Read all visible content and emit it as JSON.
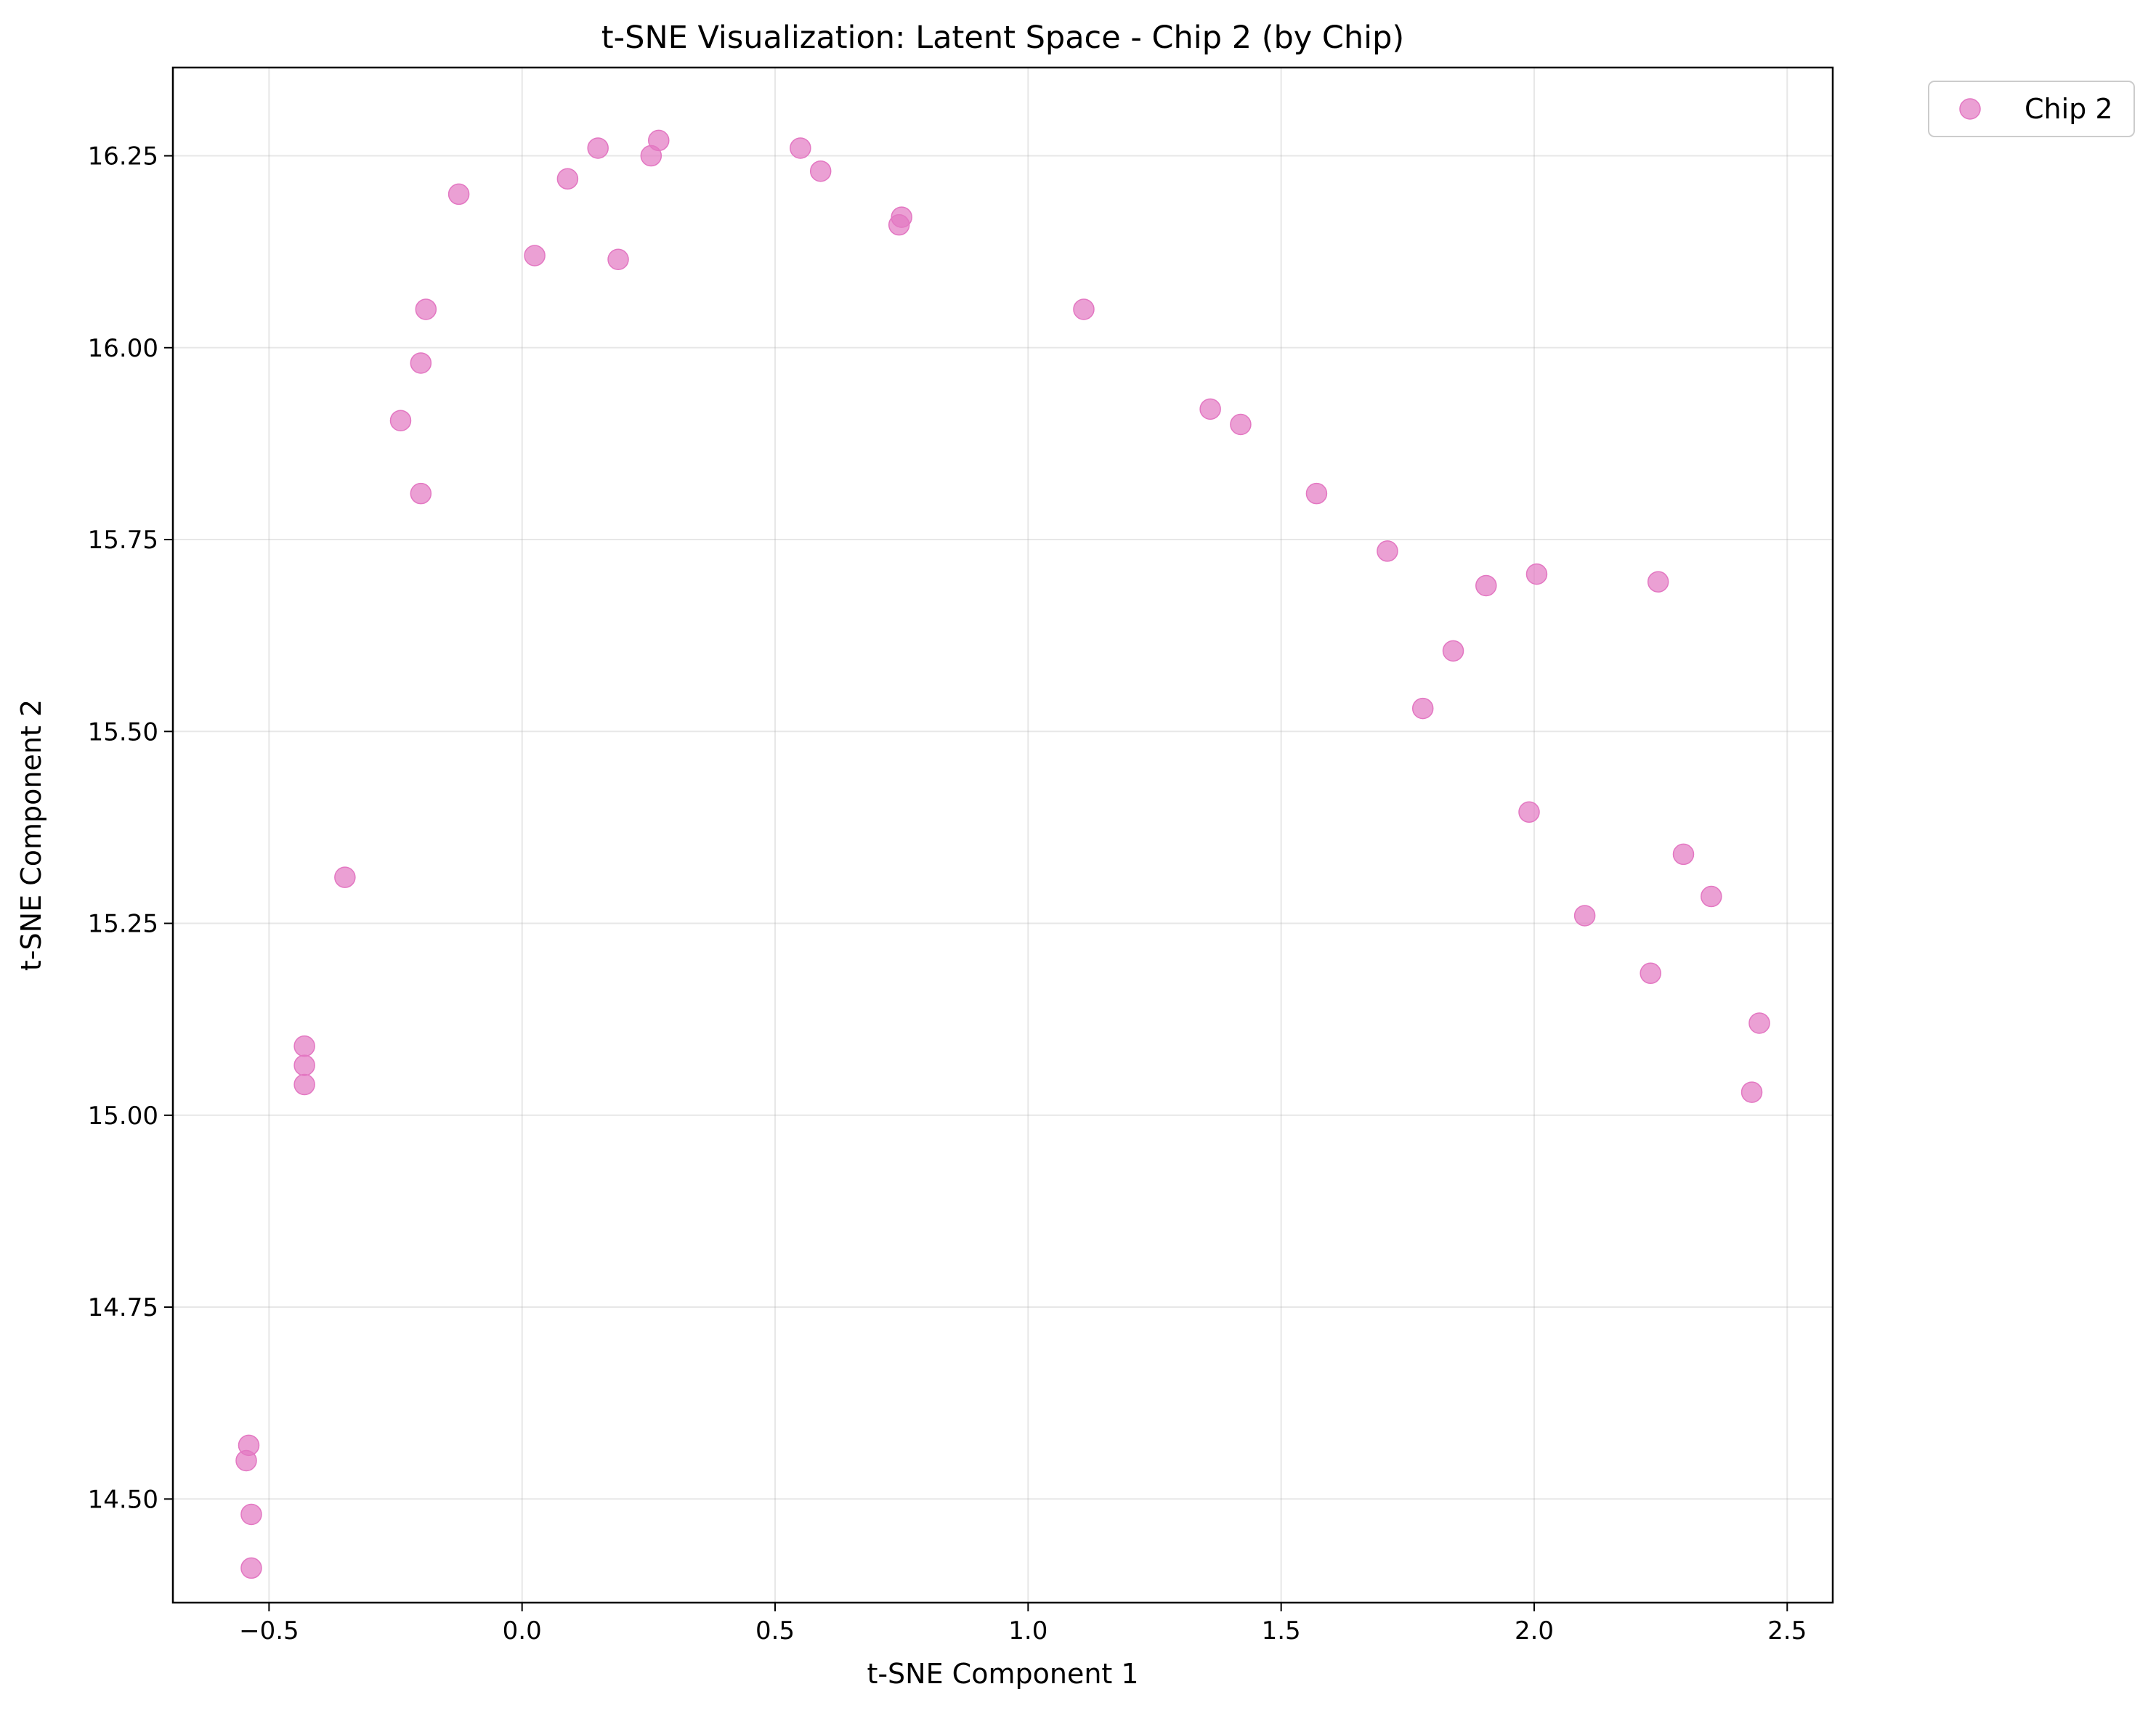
{
  "chart_data": {
    "type": "scatter",
    "title": "t-SNE Visualization: Latent Space - Chip 2 (by Chip)",
    "xlabel": "t-SNE Component 1",
    "ylabel": "t-SNE Component 2",
    "xlim": [
      -0.69,
      2.59
    ],
    "ylim": [
      14.365,
      16.365
    ],
    "xticks": [
      -0.5,
      0.0,
      0.5,
      1.0,
      1.5,
      2.0,
      2.5
    ],
    "xtick_labels": [
      "−0.5",
      "0.0",
      "0.5",
      "1.0",
      "1.5",
      "2.0",
      "2.5"
    ],
    "yticks": [
      14.5,
      14.75,
      15.0,
      15.25,
      15.5,
      15.75,
      16.0,
      16.25
    ],
    "ytick_labels": [
      "14.50",
      "14.75",
      "15.00",
      "15.25",
      "15.50",
      "15.75",
      "16.00",
      "16.25"
    ],
    "grid": true,
    "legend_position": "outside-top-right",
    "series": [
      {
        "name": "Chip 2",
        "color": "#e377c2",
        "points": [
          [
            -0.54,
            14.57
          ],
          [
            -0.545,
            14.55
          ],
          [
            -0.535,
            14.48
          ],
          [
            -0.535,
            14.41
          ],
          [
            -0.43,
            15.09
          ],
          [
            -0.43,
            15.065
          ],
          [
            -0.43,
            15.04
          ],
          [
            -0.35,
            15.31
          ],
          [
            -0.24,
            15.905
          ],
          [
            -0.2,
            15.98
          ],
          [
            -0.19,
            16.05
          ],
          [
            -0.2,
            15.81
          ],
          [
            -0.125,
            16.2
          ],
          [
            0.025,
            16.12
          ],
          [
            0.09,
            16.22
          ],
          [
            0.15,
            16.26
          ],
          [
            0.19,
            16.115
          ],
          [
            0.255,
            16.25
          ],
          [
            0.27,
            16.27
          ],
          [
            0.55,
            16.26
          ],
          [
            0.59,
            16.23
          ],
          [
            0.745,
            16.16
          ],
          [
            0.75,
            16.17
          ],
          [
            1.11,
            16.05
          ],
          [
            1.36,
            15.92
          ],
          [
            1.42,
            15.9
          ],
          [
            1.57,
            15.81
          ],
          [
            1.71,
            15.735
          ],
          [
            1.78,
            15.53
          ],
          [
            1.84,
            15.605
          ],
          [
            1.905,
            15.69
          ],
          [
            1.99,
            15.395
          ],
          [
            2.005,
            15.705
          ],
          [
            2.1,
            15.26
          ],
          [
            2.23,
            15.185
          ],
          [
            2.245,
            15.695
          ],
          [
            2.295,
            15.34
          ],
          [
            2.35,
            15.285
          ],
          [
            2.43,
            15.03
          ],
          [
            2.445,
            15.12
          ]
        ]
      }
    ]
  }
}
